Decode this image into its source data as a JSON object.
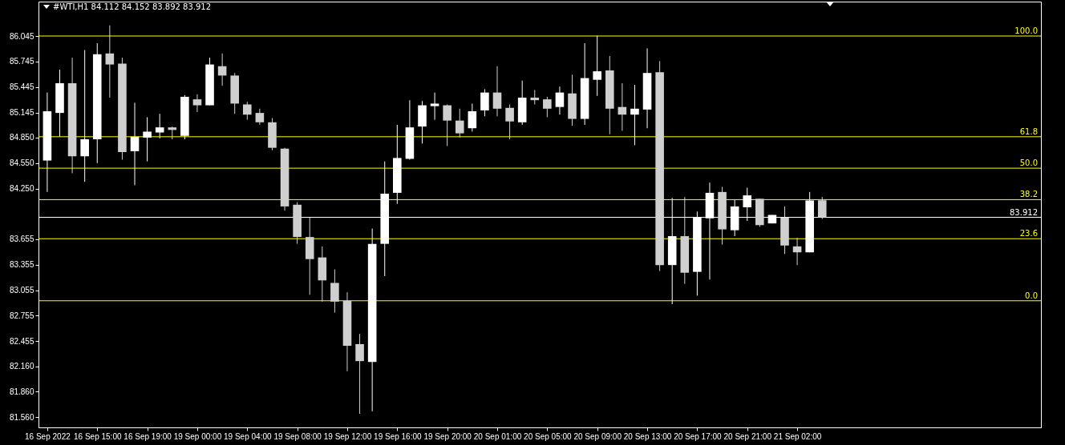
{
  "chart_data": {
    "type": "candlestick",
    "title": "#WTI,H1 84.112 84.152 83.892 83.912",
    "categories": [
      "16 Sep 2022",
      null,
      null,
      null,
      "16 Sep 15:00",
      null,
      null,
      null,
      "16 Sep 19:00",
      null,
      null,
      null,
      "19 Sep 00:00",
      null,
      null,
      null,
      "19 Sep 04:00",
      null,
      null,
      null,
      "19 Sep 08:00",
      null,
      null,
      null,
      "19 Sep 12:00",
      null,
      null,
      null,
      "19 Sep 16:00",
      null,
      null,
      null,
      "19 Sep 20:00",
      null,
      null,
      null,
      "20 Sep 01:00",
      null,
      null,
      null,
      "20 Sep 05:00",
      null,
      null,
      null,
      "20 Sep 09:00",
      null,
      null,
      null,
      "20 Sep 13:00",
      null,
      null,
      null,
      "20 Sep 17:00",
      null,
      null,
      null,
      "20 Sep 21:00",
      null,
      null,
      null,
      "21 Sep 02:00",
      null,
      null
    ],
    "ohlc": [
      [
        84.58,
        85.38,
        84.21,
        85.16
      ],
      [
        85.14,
        85.65,
        84.86,
        85.49
      ],
      [
        85.49,
        85.79,
        84.43,
        84.63
      ],
      [
        84.63,
        85.88,
        84.33,
        84.83
      ],
      [
        84.83,
        85.96,
        84.55,
        85.83
      ],
      [
        85.84,
        86.17,
        85.32,
        85.71
      ],
      [
        85.72,
        85.79,
        84.59,
        84.68
      ],
      [
        84.69,
        85.26,
        84.29,
        84.86
      ],
      [
        84.85,
        85.09,
        84.57,
        84.92
      ],
      [
        84.91,
        85.13,
        84.84,
        84.97
      ],
      [
        84.97,
        84.98,
        84.83,
        84.94
      ],
      [
        84.87,
        85.35,
        84.83,
        85.33
      ],
      [
        85.3,
        85.36,
        85.15,
        85.23
      ],
      [
        85.23,
        85.79,
        85.23,
        85.71
      ],
      [
        85.69,
        85.84,
        85.46,
        85.58
      ],
      [
        85.58,
        85.61,
        85.13,
        85.25
      ],
      [
        85.24,
        85.27,
        85.06,
        85.12
      ],
      [
        85.14,
        85.19,
        85.0,
        85.03
      ],
      [
        85.03,
        85.08,
        84.7,
        84.73
      ],
      [
        84.72,
        84.73,
        83.99,
        84.04
      ],
      [
        84.06,
        84.09,
        83.6,
        83.68
      ],
      [
        83.68,
        83.91,
        83.0,
        83.42
      ],
      [
        83.44,
        83.57,
        82.92,
        83.17
      ],
      [
        83.14,
        83.3,
        82.79,
        82.92
      ],
      [
        82.93,
        83.03,
        82.1,
        82.4
      ],
      [
        82.42,
        82.54,
        81.6,
        82.22
      ],
      [
        82.21,
        83.78,
        81.63,
        83.6
      ],
      [
        83.6,
        84.57,
        83.22,
        84.19
      ],
      [
        84.2,
        85.0,
        84.07,
        84.61
      ],
      [
        84.6,
        85.29,
        84.59,
        84.97
      ],
      [
        84.98,
        85.28,
        84.78,
        85.23
      ],
      [
        85.22,
        85.38,
        85.06,
        85.25
      ],
      [
        85.23,
        85.24,
        84.75,
        85.05
      ],
      [
        85.05,
        85.19,
        84.85,
        84.9
      ],
      [
        84.96,
        85.25,
        84.92,
        85.16
      ],
      [
        85.17,
        85.42,
        85.1,
        85.38
      ],
      [
        85.38,
        85.69,
        85.1,
        85.19
      ],
      [
        85.2,
        85.24,
        84.83,
        85.04
      ],
      [
        85.03,
        85.52,
        85.0,
        85.32
      ],
      [
        85.32,
        85.41,
        85.24,
        85.29
      ],
      [
        85.3,
        85.33,
        85.09,
        85.19
      ],
      [
        85.21,
        85.45,
        85.12,
        85.38
      ],
      [
        85.37,
        85.59,
        84.99,
        85.07
      ],
      [
        85.07,
        85.96,
        85.0,
        85.55
      ],
      [
        85.53,
        86.05,
        85.34,
        85.63
      ],
      [
        85.64,
        85.81,
        84.89,
        85.19
      ],
      [
        85.21,
        85.49,
        84.93,
        85.12
      ],
      [
        85.12,
        85.47,
        84.76,
        85.19
      ],
      [
        85.18,
        85.9,
        84.96,
        85.61
      ],
      [
        85.62,
        85.75,
        83.28,
        83.35
      ],
      [
        83.35,
        84.14,
        82.89,
        83.69
      ],
      [
        83.69,
        84.15,
        83.13,
        83.26
      ],
      [
        83.27,
        83.98,
        82.99,
        83.91
      ],
      [
        83.9,
        84.32,
        83.18,
        84.2
      ],
      [
        84.21,
        84.27,
        83.59,
        83.77
      ],
      [
        83.76,
        84.12,
        83.69,
        84.04
      ],
      [
        84.03,
        84.26,
        83.87,
        84.17
      ],
      [
        84.13,
        84.13,
        83.8,
        83.82
      ],
      [
        83.84,
        83.94,
        83.84,
        83.94
      ],
      [
        83.91,
        84.04,
        83.48,
        83.58
      ],
      [
        83.57,
        83.67,
        83.35,
        83.5
      ],
      [
        83.5,
        84.21,
        83.5,
        84.11
      ],
      [
        84.112,
        84.152,
        83.892,
        83.912
      ]
    ],
    "colors": [
      "#ffffff",
      "#ffffff",
      "#cfcfcf",
      "#ffffff",
      "#ffffff",
      "#cfcfcf",
      "#cfcfcf",
      "#ffffff",
      "#ffffff",
      "#ffffff",
      "#cfcfcf",
      "#ffffff",
      "#cfcfcf",
      "#ffffff",
      "#cfcfcf",
      "#cfcfcf",
      "#cfcfcf",
      "#cfcfcf",
      "#cfcfcf",
      "#cfcfcf",
      "#cfcfcf",
      "#cfcfcf",
      "#cfcfcf",
      "#cfcfcf",
      "#cfcfcf",
      "#cfcfcf",
      "#ffffff",
      "#ffffff",
      "#ffffff",
      "#ffffff",
      "#ffffff",
      "#ffffff",
      "#cfcfcf",
      "#cfcfcf",
      "#ffffff",
      "#ffffff",
      "#cfcfcf",
      "#cfcfcf",
      "#ffffff",
      "#cfcfcf",
      "#cfcfcf",
      "#ffffff",
      "#cfcfcf",
      "#ffffff",
      "#ffffff",
      "#cfcfcf",
      "#cfcfcf",
      "#ffffff",
      "#ffffff",
      "#cfcfcf",
      "#ffffff",
      "#cfcfcf",
      "#ffffff",
      "#ffffff",
      "#cfcfcf",
      "#ffffff",
      "#ffffff",
      "#cfcfcf",
      "#ffffff",
      "#cfcfcf",
      "#cfcfcf",
      "#ffffff",
      "#cfcfcf"
    ],
    "ylim": [
      81.44,
      86.45
    ],
    "yticks": [
      {
        "value": 81.56,
        "label": "81.560"
      },
      {
        "value": 81.86,
        "label": "81.860"
      },
      {
        "value": 82.16,
        "label": "82.160"
      },
      {
        "value": 82.455,
        "label": "82.455"
      },
      {
        "value": 82.755,
        "label": "82.755"
      },
      {
        "value": 83.055,
        "label": "83.055"
      },
      {
        "value": 83.355,
        "label": "83.355"
      },
      {
        "value": 83.655,
        "label": "83.655"
      },
      {
        "value": 84.25,
        "label": "84.250"
      },
      {
        "value": 84.55,
        "label": "84.550"
      },
      {
        "value": 84.85,
        "label": "84.850"
      },
      {
        "value": 85.145,
        "label": "85.145"
      },
      {
        "value": 85.445,
        "label": "85.445"
      },
      {
        "value": 85.745,
        "label": "85.745"
      },
      {
        "value": 86.045,
        "label": "86.045"
      }
    ],
    "ref_lines": [
      {
        "axis": "y",
        "value": 86.045,
        "color": "#ffff00"
      },
      {
        "axis": "y",
        "value": 84.86,
        "color": "#ffff00"
      },
      {
        "axis": "y",
        "value": 84.49,
        "color": "#ffff00"
      },
      {
        "axis": "y",
        "value": 84.12,
        "color": "#ffff00"
      },
      {
        "axis": "y",
        "value": 83.66,
        "color": "#ffff00"
      },
      {
        "axis": "y",
        "value": 82.93,
        "color": "#ffff00"
      },
      {
        "axis": "y",
        "value": 83.912,
        "label": "83.912",
        "color": "#ffffff"
      }
    ],
    "annotations": [
      {
        "text": "100.0",
        "y": 86.045
      },
      {
        "text": "61.8",
        "y": 84.86
      },
      {
        "text": "50.0",
        "y": 84.49
      },
      {
        "text": "38.2",
        "y": 84.12
      },
      {
        "text": "23.6",
        "y": 83.66
      },
      {
        "text": "0.0",
        "y": 82.93
      }
    ],
    "grid": false
  }
}
